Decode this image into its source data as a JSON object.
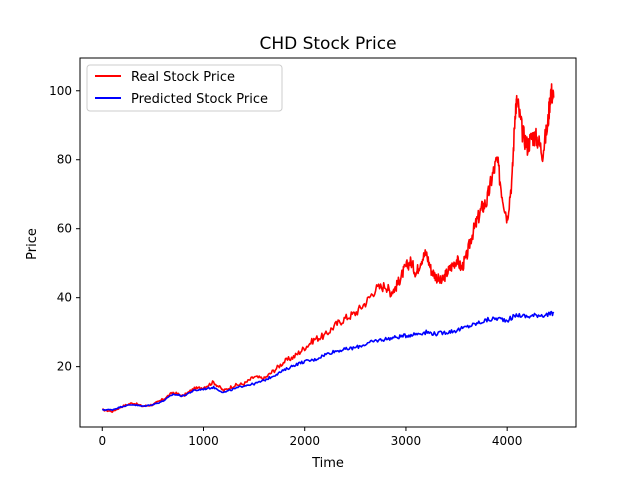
{
  "chart_data": {
    "type": "line",
    "title": "CHD Stock Price",
    "xlabel": "Time",
    "ylabel": "Price",
    "xlim": [
      -220,
      4680
    ],
    "ylim": [
      2.5,
      109.5
    ],
    "xticks": [
      0,
      1000,
      2000,
      3000,
      4000
    ],
    "yticks": [
      20,
      40,
      60,
      80,
      100
    ],
    "legend_position": "upper-left",
    "grid": false,
    "series": [
      {
        "name": "Real Stock Price",
        "color": "#ff0000",
        "x": [
          0,
          100,
          200,
          300,
          400,
          500,
          600,
          700,
          800,
          900,
          1000,
          1100,
          1200,
          1300,
          1400,
          1500,
          1600,
          1700,
          1800,
          1900,
          2000,
          2100,
          2200,
          2300,
          2400,
          2500,
          2600,
          2700,
          2800,
          2850,
          2900,
          2950,
          3000,
          3050,
          3100,
          3150,
          3200,
          3250,
          3300,
          3350,
          3400,
          3450,
          3500,
          3550,
          3600,
          3650,
          3700,
          3750,
          3800,
          3850,
          3900,
          3950,
          4000,
          4050,
          4080,
          4100,
          4150,
          4200,
          4250,
          4300,
          4350,
          4400,
          4430,
          4460
        ],
        "values": [
          7.5,
          7.0,
          8.5,
          9.5,
          8.5,
          9.0,
          10.5,
          12.5,
          11.5,
          13.5,
          14.0,
          15.5,
          13.0,
          14.5,
          15.0,
          17.0,
          16.5,
          19.0,
          21.5,
          23.0,
          25.5,
          28.0,
          29.0,
          32.0,
          34.0,
          35.5,
          38.5,
          42.5,
          43.5,
          41.5,
          43.0,
          46.0,
          49.0,
          50.5,
          47.0,
          51.0,
          53.0,
          48.0,
          46.0,
          44.5,
          47.0,
          49.0,
          51.0,
          48.5,
          52.0,
          58.0,
          62.0,
          66.0,
          68.0,
          75.0,
          80.0,
          70.0,
          63.0,
          75.0,
          95.0,
          97.0,
          88.0,
          84.0,
          87.0,
          86.0,
          82.0,
          90.0,
          100.0,
          98.0
        ]
      },
      {
        "name": "Predicted Stock Price",
        "color": "#0000ff",
        "x": [
          0,
          100,
          200,
          300,
          400,
          500,
          600,
          700,
          800,
          900,
          1000,
          1100,
          1200,
          1300,
          1400,
          1500,
          1600,
          1700,
          1800,
          1900,
          2000,
          2100,
          2200,
          2300,
          2400,
          2500,
          2600,
          2700,
          2800,
          2900,
          3000,
          3100,
          3200,
          3300,
          3400,
          3500,
          3600,
          3700,
          3800,
          3900,
          4000,
          4100,
          4200,
          4300,
          4400,
          4460
        ],
        "values": [
          7.5,
          7.5,
          8.5,
          9.0,
          8.5,
          9.0,
          10.0,
          12.0,
          11.5,
          13.0,
          13.5,
          14.0,
          12.5,
          13.5,
          14.5,
          15.0,
          16.0,
          17.5,
          19.0,
          20.5,
          21.5,
          22.0,
          23.5,
          24.5,
          25.0,
          25.5,
          26.5,
          27.5,
          28.0,
          28.5,
          29.0,
          29.5,
          30.0,
          29.5,
          30.0,
          30.5,
          31.5,
          32.5,
          33.5,
          34.0,
          33.5,
          35.0,
          34.5,
          35.0,
          35.0,
          35.5
        ]
      }
    ]
  }
}
